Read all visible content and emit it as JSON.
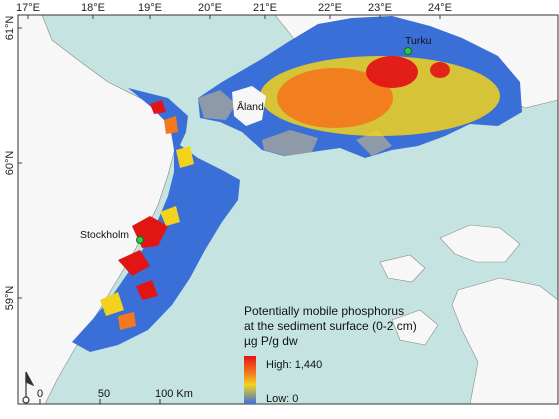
{
  "map": {
    "top_axis": [
      "17°E",
      "18°E",
      "19°E",
      "20°E",
      "21°E",
      "22°E",
      "23°E",
      "24°E"
    ],
    "left_axis": [
      "61°N",
      "60°N",
      "59°N"
    ],
    "places": [
      "Turku",
      "Åland",
      "Stockholm"
    ],
    "colors": {
      "sea": "#c5e4e1",
      "land": "#f7f7f7",
      "low": "#3a6fd8",
      "mid": "#f2d21c",
      "high": "#e21515",
      "outline": "#8a8a8a"
    },
    "legend": {
      "title_line1": "Potentially mobile phosphorus",
      "title_line2": "at the sediment surface (0-2 cm)",
      "unit": "µg P/g dw",
      "high_label": "High: 1,440",
      "low_label": "Low: 0"
    },
    "scale_bar": {
      "ticks": [
        "0",
        "50",
        "100 Km"
      ]
    },
    "north_arrow_icon": "north-arrow-icon"
  }
}
